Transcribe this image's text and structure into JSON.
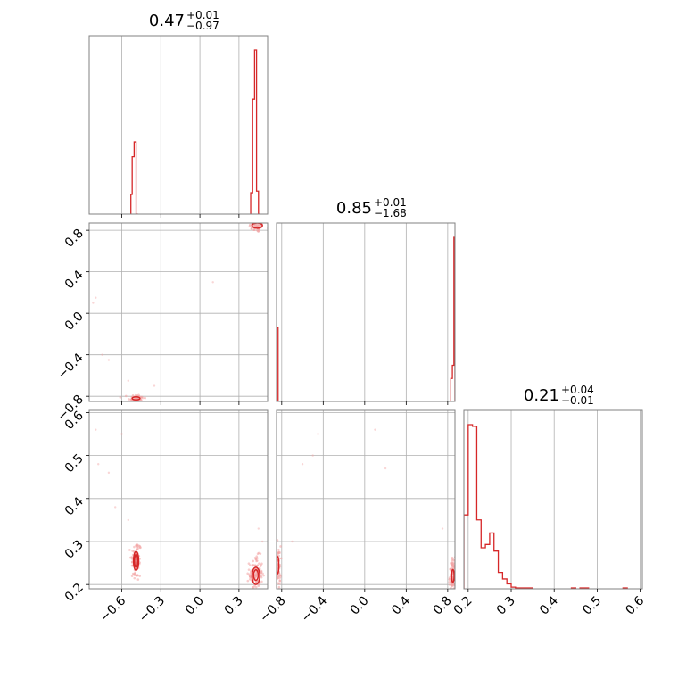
{
  "colors": {
    "line": "#d62728",
    "grid": "#b0b0b0",
    "frame": "#808080",
    "scatter": "#f2a3a3"
  },
  "chart_data": {
    "type": "corner",
    "parameters": [
      {
        "range": [
          -0.85,
          0.52
        ],
        "ticks": [
          -0.6,
          -0.3,
          0.0,
          0.3
        ],
        "tick_labels": [
          "−0.6",
          "−0.3",
          "0.0",
          "0.3"
        ]
      },
      {
        "range": [
          -0.85,
          0.87
        ],
        "ticks": [
          -0.8,
          -0.4,
          0.0,
          0.4,
          0.8
        ],
        "tick_labels": [
          "−0.8",
          "−0.4",
          "0.0",
          "0.4",
          "0.8"
        ]
      },
      {
        "range": [
          0.19,
          0.605
        ],
        "ticks": [
          0.2,
          0.3,
          0.4,
          0.5,
          0.6
        ],
        "tick_labels": [
          "0.2",
          "0.3",
          "0.4",
          "0.5",
          "0.6"
        ]
      }
    ],
    "titles": [
      {
        "value": "0.47",
        "plus": "+0.01",
        "minus": "−0.97"
      },
      {
        "value": "0.85",
        "plus": "+0.01",
        "minus": "−1.68"
      },
      {
        "value": "0.21",
        "plus": "+0.04",
        "minus": "−0.01"
      }
    ],
    "histograms": [
      {
        "bin_edges": [
          -0.85,
          0.52
        ],
        "bins": [
          {
            "x0": -0.53,
            "x1": -0.52,
            "h": 0.12
          },
          {
            "x0": -0.52,
            "x1": -0.505,
            "h": 0.35
          },
          {
            "x0": -0.505,
            "x1": -0.49,
            "h": 0.44
          },
          {
            "x0": -0.49,
            "x1": -0.475,
            "h": 0.0
          },
          {
            "x0": 0.39,
            "x1": 0.405,
            "h": 0.13
          },
          {
            "x0": 0.405,
            "x1": 0.42,
            "h": 0.7
          },
          {
            "x0": 0.42,
            "x1": 0.435,
            "h": 1.0
          },
          {
            "x0": 0.435,
            "x1": 0.45,
            "h": 0.14
          },
          {
            "x0": 0.45,
            "x1": 0.465,
            "h": 0.0
          }
        ]
      },
      {
        "bins": [
          {
            "x0": -0.85,
            "x1": -0.835,
            "h": 0.45
          },
          {
            "x0": -0.835,
            "x1": -0.82,
            "h": 0.0
          },
          {
            "x0": 0.815,
            "x1": 0.83,
            "h": 0.0
          },
          {
            "x0": 0.83,
            "x1": 0.845,
            "h": 0.14
          },
          {
            "x0": 0.845,
            "x1": 0.86,
            "h": 0.22
          },
          {
            "x0": 0.86,
            "x1": 0.87,
            "h": 1.0
          }
        ]
      },
      {
        "bins": [
          {
            "x0": 0.19,
            "x1": 0.2,
            "h": 0.45
          },
          {
            "x0": 0.2,
            "x1": 0.21,
            "h": 1.0
          },
          {
            "x0": 0.21,
            "x1": 0.22,
            "h": 0.99
          },
          {
            "x0": 0.22,
            "x1": 0.23,
            "h": 0.42
          },
          {
            "x0": 0.23,
            "x1": 0.24,
            "h": 0.25
          },
          {
            "x0": 0.24,
            "x1": 0.25,
            "h": 0.27
          },
          {
            "x0": 0.25,
            "x1": 0.26,
            "h": 0.34
          },
          {
            "x0": 0.26,
            "x1": 0.27,
            "h": 0.23
          },
          {
            "x0": 0.27,
            "x1": 0.28,
            "h": 0.1
          },
          {
            "x0": 0.28,
            "x1": 0.29,
            "h": 0.06
          },
          {
            "x0": 0.29,
            "x1": 0.3,
            "h": 0.03
          },
          {
            "x0": 0.3,
            "x1": 0.31,
            "h": 0.01
          },
          {
            "x0": 0.31,
            "x1": 0.35,
            "h": 0.005
          },
          {
            "x0": 0.44,
            "x1": 0.45,
            "h": 0.005
          },
          {
            "x0": 0.46,
            "x1": 0.48,
            "h": 0.005
          },
          {
            "x0": 0.56,
            "x1": 0.57,
            "h": 0.005
          }
        ]
      }
    ],
    "pairs": [
      {
        "x_param": 0,
        "y_param": 1,
        "clusters": [
          {
            "x": 0.44,
            "y": 0.84,
            "sx": 0.03,
            "sy": 0.03,
            "n": 60
          },
          {
            "x": -0.49,
            "y": -0.82,
            "sx": 0.03,
            "sy": 0.02,
            "n": 60
          }
        ],
        "contours": [
          {
            "x": 0.44,
            "y": 0.845,
            "rx": 0.04,
            "ry": 0.025
          },
          {
            "x": -0.49,
            "y": -0.82,
            "rx": 0.03,
            "ry": 0.015
          }
        ],
        "outliers": [
          [
            -0.82,
            0.1
          ],
          [
            -0.8,
            0.15
          ],
          [
            -0.75,
            -0.4
          ],
          [
            -0.7,
            -0.45
          ],
          [
            -0.35,
            -0.7
          ],
          [
            0.1,
            0.3
          ],
          [
            -0.55,
            -0.65
          ]
        ]
      },
      {
        "x_param": 0,
        "y_param": 2,
        "clusters": [
          {
            "x": -0.49,
            "y": 0.255,
            "sx": 0.02,
            "sy": 0.025,
            "n": 80
          },
          {
            "x": 0.43,
            "y": 0.225,
            "sx": 0.025,
            "sy": 0.02,
            "n": 120
          }
        ],
        "contours": [
          {
            "x": -0.49,
            "y": 0.255,
            "rx": 0.012,
            "ry": 0.015
          },
          {
            "x": -0.49,
            "y": 0.255,
            "rx": 0.02,
            "ry": 0.022
          },
          {
            "x": 0.43,
            "y": 0.222,
            "rx": 0.018,
            "ry": 0.012
          },
          {
            "x": 0.43,
            "y": 0.22,
            "rx": 0.03,
            "ry": 0.02
          }
        ],
        "outliers": [
          [
            -0.8,
            0.56
          ],
          [
            -0.78,
            0.48
          ],
          [
            -0.7,
            0.46
          ],
          [
            -0.65,
            0.38
          ],
          [
            -0.6,
            0.55
          ],
          [
            -0.55,
            0.35
          ],
          [
            0.45,
            0.33
          ],
          [
            0.48,
            0.3
          ]
        ]
      },
      {
        "x_param": 1,
        "y_param": 2,
        "clusters": [
          {
            "x": -0.84,
            "y": 0.24,
            "sx": 0.015,
            "sy": 0.025,
            "n": 80
          },
          {
            "x": 0.85,
            "y": 0.22,
            "sx": 0.015,
            "sy": 0.02,
            "n": 120
          }
        ],
        "contours": [
          {
            "x": -0.84,
            "y": 0.245,
            "rx": 0.012,
            "ry": 0.02
          },
          {
            "x": 0.85,
            "y": 0.22,
            "rx": 0.012,
            "ry": 0.015
          }
        ],
        "outliers": [
          [
            -0.5,
            0.5
          ],
          [
            -0.45,
            0.55
          ],
          [
            -0.6,
            0.48
          ],
          [
            0.1,
            0.56
          ],
          [
            0.2,
            0.47
          ],
          [
            -0.7,
            0.3
          ],
          [
            0.75,
            0.33
          ]
        ]
      }
    ]
  }
}
